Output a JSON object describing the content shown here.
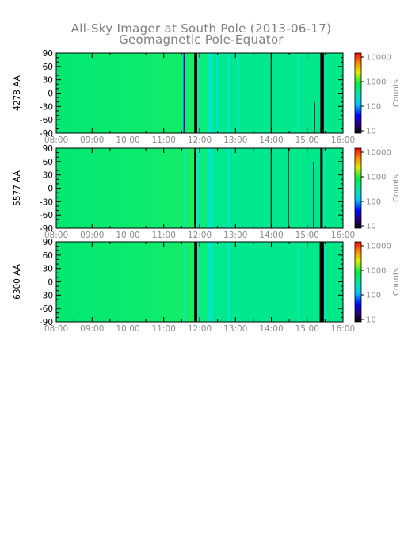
{
  "title_line1": "All-Sky Imager at South Pole (2013-06-17)",
  "title_line2": "Geomagnetic Pole-Equator",
  "colors": {
    "background": "#00e872",
    "background_light": "#22ee66",
    "cyan": "#00e8c8",
    "black": "#000000",
    "navy": "#0a0a60",
    "blue": "#0000ff",
    "axis": "#000000",
    "tick_text": "#8a8a8a"
  },
  "chart_data": [
    {
      "type": "heatmap",
      "panel": "4278",
      "ylabel": "4278 AA",
      "x_ticks": [
        "08:00",
        "09:00",
        "10:00",
        "11:00",
        "12:00",
        "13:00",
        "14:00",
        "15:00",
        "16:00"
      ],
      "y_ticks": [
        "90",
        "60",
        "30",
        "0",
        "-30",
        "-60",
        "-90"
      ],
      "xlim": [
        "08:00",
        "16:00"
      ],
      "ylim": [
        -90,
        90
      ],
      "colorbar": {
        "label": "Counts",
        "ticks": [
          "10000",
          "1000",
          "100",
          "10"
        ],
        "scale": "log",
        "range": [
          10,
          10000
        ]
      },
      "stripes": [
        {
          "start": "11:33",
          "end": "11:35",
          "kind": "blue"
        },
        {
          "start": "11:51",
          "end": "11:56",
          "kind": "black"
        },
        {
          "start": "11:58",
          "end": "12:01",
          "kind": "cyan"
        },
        {
          "start": "12:13",
          "end": "12:22",
          "kind": "cyan"
        },
        {
          "start": "12:28",
          "end": "12:31",
          "kind": "cyan"
        },
        {
          "start": "12:47",
          "end": "12:50",
          "kind": "cyan"
        },
        {
          "start": "13:03",
          "end": "13:06",
          "kind": "cyan"
        },
        {
          "start": "13:59",
          "end": "14:00",
          "kind": "black"
        },
        {
          "start": "14:44",
          "end": "14:47",
          "kind": "cyan"
        },
        {
          "start": "15:12",
          "end": "15:13",
          "kind": "navy",
          "ylim": [
            -90,
            -20
          ]
        },
        {
          "start": "15:22",
          "end": "15:28",
          "kind": "black"
        },
        {
          "start": "15:29",
          "end": "15:31",
          "kind": "cyan"
        }
      ]
    },
    {
      "type": "heatmap",
      "panel": "5577",
      "ylabel": "5577 AA",
      "x_ticks": [
        "08:00",
        "09:00",
        "10:00",
        "11:00",
        "12:00",
        "13:00",
        "14:00",
        "15:00",
        "16:00"
      ],
      "y_ticks": [
        "90",
        "60",
        "30",
        "0",
        "-30",
        "-60",
        "-90"
      ],
      "xlim": [
        "08:00",
        "16:00"
      ],
      "ylim": [
        -90,
        90
      ],
      "colorbar": {
        "label": "Counts",
        "ticks": [
          "10000",
          "1000",
          "100",
          "10"
        ],
        "scale": "log",
        "range": [
          10,
          10000
        ]
      },
      "stripes": [
        {
          "start": "11:33",
          "end": "11:35",
          "kind": "cyan"
        },
        {
          "start": "11:51",
          "end": "11:54",
          "kind": "black"
        },
        {
          "start": "11:56",
          "end": "12:00",
          "kind": "cyan"
        },
        {
          "start": "12:13",
          "end": "12:22",
          "kind": "cyan"
        },
        {
          "start": "12:47",
          "end": "12:50",
          "kind": "cyan"
        },
        {
          "start": "13:59",
          "end": "14:00",
          "kind": "black"
        },
        {
          "start": "14:28",
          "end": "14:29",
          "kind": "black"
        },
        {
          "start": "15:10",
          "end": "15:11",
          "kind": "navy",
          "ylim": [
            -90,
            60
          ]
        },
        {
          "start": "15:22",
          "end": "15:26",
          "kind": "black"
        },
        {
          "start": "15:29",
          "end": "15:31",
          "kind": "cyan"
        }
      ]
    },
    {
      "type": "heatmap",
      "panel": "6300",
      "ylabel": "6300 AA",
      "x_ticks": [
        "08:00",
        "09:00",
        "10:00",
        "11:00",
        "12:00",
        "13:00",
        "14:00",
        "15:00",
        "16:00"
      ],
      "y_ticks": [
        "90",
        "60",
        "30",
        "0",
        "-30",
        "-60",
        "-90"
      ],
      "xlim": [
        "08:00",
        "16:00"
      ],
      "ylim": [
        -90,
        90
      ],
      "colorbar": {
        "label": "Counts",
        "ticks": [
          "10000",
          "1000",
          "100",
          "10"
        ],
        "scale": "log",
        "range": [
          10,
          10000
        ]
      },
      "stripes": [
        {
          "start": "11:33",
          "end": "11:35",
          "kind": "cyan"
        },
        {
          "start": "11:51",
          "end": "11:56",
          "kind": "black"
        },
        {
          "start": "11:58",
          "end": "12:01",
          "kind": "cyan"
        },
        {
          "start": "12:13",
          "end": "12:22",
          "kind": "cyan"
        },
        {
          "start": "12:47",
          "end": "12:50",
          "kind": "cyan"
        },
        {
          "start": "14:44",
          "end": "14:47",
          "kind": "cyan"
        },
        {
          "start": "15:21",
          "end": "15:28",
          "kind": "black"
        },
        {
          "start": "15:29",
          "end": "15:31",
          "kind": "cyan"
        }
      ]
    }
  ]
}
